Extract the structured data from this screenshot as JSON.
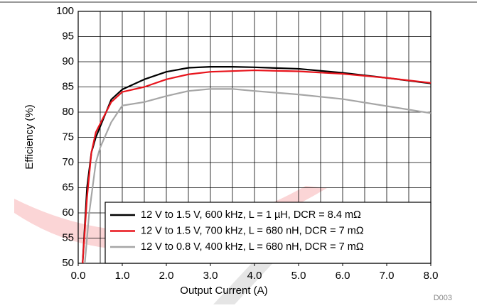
{
  "chart_data": {
    "type": "line",
    "xlabel": "Output Current (A)",
    "ylabel": "Efficiency (%)",
    "note": "D003",
    "xlim": [
      0,
      8
    ],
    "ylim": [
      50,
      100
    ],
    "xticks": [
      {
        "value": 0,
        "label": "0.0"
      },
      {
        "value": 1,
        "label": "1.0"
      },
      {
        "value": 2,
        "label": "2.0"
      },
      {
        "value": 3,
        "label": "3.0"
      },
      {
        "value": 4,
        "label": "4.0"
      },
      {
        "value": 5,
        "label": "5.0"
      },
      {
        "value": 6,
        "label": "6.0"
      },
      {
        "value": 7,
        "label": "7.0"
      },
      {
        "value": 8,
        "label": "8.0"
      }
    ],
    "xgrid": [
      0,
      0.5,
      1,
      1.5,
      2,
      2.5,
      3,
      3.5,
      4,
      4.5,
      5,
      5.5,
      6,
      6.5,
      7,
      7.5,
      8
    ],
    "yticks": [
      50,
      55,
      60,
      65,
      70,
      75,
      80,
      85,
      90,
      95,
      100
    ],
    "grid": true,
    "legend": "lower right",
    "series": [
      {
        "name": "12 V to 1.5 V, 600 kHz, L = 1 µH, DCR = 8.4 mΩ",
        "color": "#000000",
        "x": [
          0.1,
          0.2,
          0.3,
          0.4,
          0.75,
          1.0,
          1.5,
          2.0,
          2.5,
          3.0,
          3.5,
          4.0,
          5.0,
          6.0,
          7.0,
          8.0
        ],
        "values": [
          50,
          65,
          72,
          75,
          82.5,
          84.5,
          86.5,
          88,
          88.8,
          89,
          89,
          88.9,
          88.6,
          87.8,
          86.8,
          85.7
        ]
      },
      {
        "name": "12 V to 1.5 V, 700 kHz, L = 680 nH, DCR = 7 mΩ",
        "color": "#e8141c",
        "x": [
          0.1,
          0.2,
          0.3,
          0.4,
          0.75,
          1.0,
          1.5,
          2.0,
          2.5,
          3.0,
          4.0,
          5.0,
          6.0,
          7.0,
          8.0
        ],
        "values": [
          50,
          63,
          72,
          76,
          82,
          84,
          85,
          86.5,
          87.5,
          88,
          88.3,
          88.1,
          87.6,
          86.8,
          85.8
        ]
      },
      {
        "name": "12 V to 0.8 V, 400 kHz, L = 680 nH, DCR = 7 mΩ",
        "color": "#a6a6a6",
        "x": [
          0.15,
          0.25,
          0.4,
          0.5,
          0.75,
          1.0,
          1.5,
          2.0,
          2.5,
          3.0,
          3.5,
          4.0,
          5.0,
          6.0,
          7.0,
          8.0
        ],
        "values": [
          50,
          60,
          70,
          73,
          78,
          81.3,
          82,
          83.2,
          84.2,
          84.6,
          84.6,
          84.2,
          83.5,
          82.6,
          81.2,
          79.8
        ]
      }
    ]
  }
}
